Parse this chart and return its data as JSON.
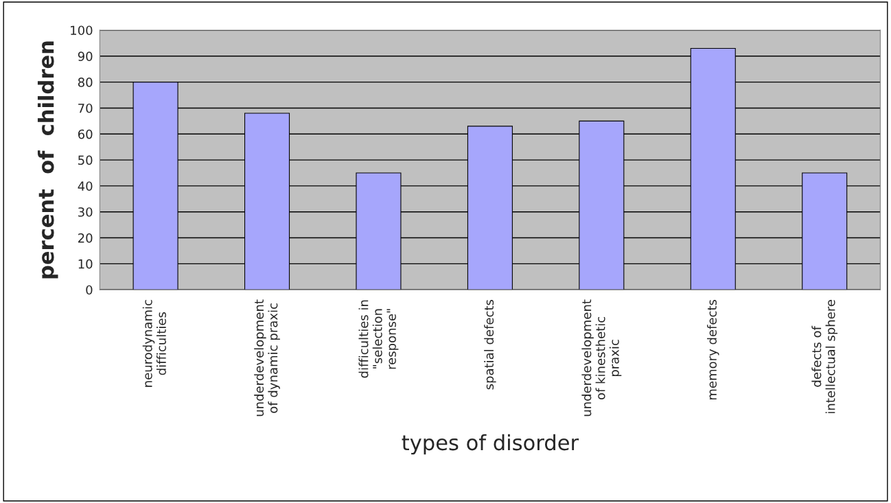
{
  "chart_data": {
    "type": "bar",
    "xlabel": "types of disorder",
    "ylabel": "percent  of  children",
    "categories": [
      "neurodynamic\ndifficulties",
      "underdevelopment\nof dynamic praxic",
      "difficulties in\n\"selection\nresponse\"",
      "spatial defects",
      "underdevelopment\nof kinesthetic\npraxic",
      "memory defects",
      "defects of\nintellectual sphere"
    ],
    "values": [
      80,
      68,
      45,
      63,
      65,
      93,
      45
    ],
    "color": "#a6a6fc",
    "ylim": [
      0,
      100
    ],
    "yticks": [
      0,
      10,
      20,
      30,
      40,
      50,
      60,
      70,
      80,
      90,
      100
    ],
    "grid": "y",
    "legend": false
  }
}
